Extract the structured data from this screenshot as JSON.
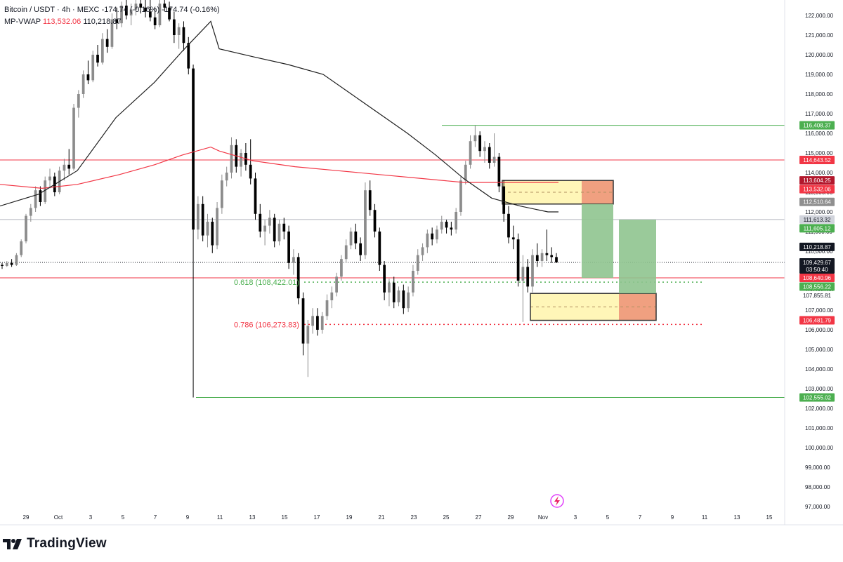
{
  "legend": {
    "symbol": "Bitcoin / USDT · 4h · MEXC",
    "change": "-174.74 (-0.16%)",
    "change2": "-174.74 (-0.16%)",
    "vwap_name": "MP-VWAP",
    "vwap_value1": "113,532.06",
    "vwap_value2": "110,218.87"
  },
  "brand": {
    "name": "TradingView"
  },
  "colors": {
    "up": "#8c8c8c",
    "down": "#000000",
    "green_line": "#4caf50",
    "red_line": "#f23645",
    "vwap_black": "#1f1f1f",
    "vwap_red": "#f23645",
    "zone_yellow": "#fff6b8",
    "zone_red": "#f0a080",
    "zone_green": "#8fc48f"
  },
  "chart_data": {
    "type": "candlestick",
    "symbol": "Bitcoin / USDT",
    "timeframe": "4h",
    "exchange": "MEXC",
    "y_range": [
      96500,
      122600
    ],
    "y_ticks": [
      "122,000.00",
      "121,000.00",
      "120,000.00",
      "119,000.00",
      "118,000.00",
      "117,000.00",
      "116,000.00",
      "115,000.00",
      "114,000.00",
      "113,000.00",
      "112,000.00",
      "111,000.00",
      "110,000.00",
      "109,000.00",
      "108,000.00",
      "107,000.00",
      "106,000.00",
      "105,000.00",
      "104,000.00",
      "103,000.00",
      "102,000.00",
      "101,000.00",
      "100,000.00",
      "99,000.00",
      "98,000.00",
      "97,000.00"
    ],
    "x_ticks": [
      "29",
      "Oct",
      "3",
      "5",
      "7",
      "9",
      "11",
      "13",
      "15",
      "17",
      "19",
      "21",
      "23",
      "25",
      "27",
      "29",
      "Nov",
      "3",
      "5",
      "7",
      "9",
      "11",
      "13",
      "15"
    ],
    "price_labels": [
      {
        "text": "116,408.37",
        "value": 116408.37,
        "style": "green"
      },
      {
        "text": "114,643.52",
        "value": 114643.52,
        "style": "red"
      },
      {
        "text": "113,604.25",
        "value": 113604.25,
        "style": "darkred"
      },
      {
        "text": "113,532.06",
        "value": 113532.06,
        "style": "red"
      },
      {
        "text": "112,510.64",
        "value": 112510.64,
        "style": "gray"
      },
      {
        "text": "111,613.32",
        "value": 111613.32,
        "style": "lightgray"
      },
      {
        "text": "111,605.12",
        "value": 111605.12,
        "style": "green"
      },
      {
        "text": "110,218.87",
        "value": 110218.87,
        "style": "black"
      },
      {
        "text": "109,429.67",
        "value": 109429.67,
        "style": "current",
        "sub": "03:50:40"
      },
      {
        "text": "108,640.96",
        "value": 108640.96,
        "style": "red"
      },
      {
        "text": "108,556.22",
        "value": 108556.22,
        "style": "green"
      },
      {
        "text": "107,855.81",
        "value": 107855.81,
        "style": "plain"
      },
      {
        "text": "106,481.79",
        "value": 106481.79,
        "style": "red"
      },
      {
        "text": "102,555.02",
        "value": 102555.02,
        "style": "green"
      }
    ],
    "fib_levels": [
      {
        "label": "0.618 (108,422.01)",
        "value": 108422.01,
        "color": "#4caf50"
      },
      {
        "label": "0.786 (106,273.83)",
        "value": 106273.83,
        "color": "#f23645"
      }
    ],
    "horizontal_lines": [
      {
        "value": 116408.37,
        "color": "#4caf50"
      },
      {
        "value": 114643.52,
        "color": "#f23645"
      },
      {
        "value": 111613.32,
        "color": "#b2b5be"
      },
      {
        "value": 109429.67,
        "color": "#131722",
        "dotted": true
      },
      {
        "value": 108640.96,
        "color": "#f23645"
      },
      {
        "value": 102555.02,
        "color": "#4caf50"
      }
    ],
    "candles": [
      [
        109300,
        109400,
        109100,
        109250
      ],
      [
        109250,
        109500,
        109200,
        109400
      ],
      [
        109400,
        109600,
        109200,
        109300
      ],
      [
        109300,
        109900,
        109250,
        109800
      ],
      [
        109800,
        110600,
        109700,
        110500
      ],
      [
        110500,
        111900,
        110400,
        111800
      ],
      [
        111800,
        112400,
        111500,
        112200
      ],
      [
        112200,
        113300,
        112000,
        113100
      ],
      [
        113100,
        113300,
        112300,
        112500
      ],
      [
        112500,
        113800,
        112400,
        113600
      ],
      [
        113600,
        114200,
        113200,
        113800
      ],
      [
        113800,
        114000,
        112800,
        113000
      ],
      [
        113000,
        114300,
        112900,
        114100
      ],
      [
        114100,
        114700,
        113600,
        114400
      ],
      [
        114400,
        115200,
        113900,
        114200
      ],
      [
        114200,
        117500,
        114100,
        117300
      ],
      [
        117300,
        118200,
        116800,
        118000
      ],
      [
        118000,
        119200,
        117800,
        119000
      ],
      [
        119000,
        119700,
        118500,
        118700
      ],
      [
        118700,
        120200,
        118600,
        120000
      ],
      [
        120000,
        120500,
        119400,
        119600
      ],
      [
        119600,
        121100,
        119500,
        120800
      ],
      [
        120800,
        121300,
        120100,
        120400
      ],
      [
        120400,
        122100,
        120300,
        121800
      ],
      [
        121800,
        122400,
        121300,
        121600
      ],
      [
        121600,
        122700,
        121400,
        122500
      ],
      [
        122500,
        122800,
        121800,
        122000
      ],
      [
        122000,
        122600,
        121500,
        122300
      ],
      [
        122300,
        122800,
        122000,
        122600
      ],
      [
        122600,
        123000,
        122100,
        122400
      ],
      [
        122400,
        122900,
        121900,
        122200
      ],
      [
        122200,
        122800,
        121700,
        121900
      ],
      [
        121900,
        122400,
        121300,
        121500
      ],
      [
        121500,
        122800,
        121400,
        122600
      ],
      [
        122600,
        123100,
        122200,
        122400
      ],
      [
        122400,
        122700,
        121700,
        121800
      ],
      [
        121800,
        122200,
        120600,
        121000
      ],
      [
        121000,
        121600,
        120300,
        121400
      ],
      [
        121400,
        121700,
        120200,
        120600
      ],
      [
        120600,
        120900,
        119000,
        119300
      ],
      [
        119300,
        119500,
        102555,
        111100
      ],
      [
        111100,
        112800,
        110600,
        112400
      ],
      [
        112400,
        112800,
        110500,
        110800
      ],
      [
        110800,
        111900,
        110200,
        111500
      ],
      [
        111500,
        111700,
        109900,
        110300
      ],
      [
        110300,
        112500,
        110100,
        112200
      ],
      [
        112200,
        113900,
        111900,
        113600
      ],
      [
        113600,
        114300,
        113300,
        114000
      ],
      [
        114000,
        115800,
        113700,
        115400
      ],
      [
        115400,
        115700,
        114000,
        114300
      ],
      [
        114300,
        115200,
        113800,
        115000
      ],
      [
        115000,
        115500,
        114100,
        114400
      ],
      [
        114400,
        115700,
        113400,
        113700
      ],
      [
        113700,
        114000,
        111600,
        111900
      ],
      [
        111900,
        112400,
        110700,
        111000
      ],
      [
        111000,
        111600,
        110300,
        111300
      ],
      [
        111300,
        112100,
        110900,
        111700
      ],
      [
        111700,
        111900,
        110200,
        110500
      ],
      [
        110500,
        111600,
        110300,
        111400
      ],
      [
        111400,
        111700,
        110600,
        111000
      ],
      [
        111000,
        111300,
        109100,
        109400
      ],
      [
        109400,
        110100,
        108800,
        109700
      ],
      [
        109700,
        109900,
        107300,
        107600
      ],
      [
        107600,
        107900,
        104700,
        105300
      ],
      [
        105300,
        106500,
        103600,
        106200
      ],
      [
        106200,
        107100,
        105800,
        106700
      ],
      [
        106700,
        107100,
        105700,
        106000
      ],
      [
        106000,
        106900,
        105800,
        106700
      ],
      [
        106700,
        107800,
        106500,
        107500
      ],
      [
        107500,
        108200,
        107100,
        107900
      ],
      [
        107900,
        108900,
        107700,
        108700
      ],
      [
        108700,
        109800,
        108500,
        109600
      ],
      [
        109600,
        110600,
        109400,
        110300
      ],
      [
        110300,
        111200,
        110100,
        111000
      ],
      [
        111000,
        111400,
        110100,
        110400
      ],
      [
        110400,
        110700,
        109500,
        109800
      ],
      [
        109800,
        113500,
        109600,
        113100
      ],
      [
        113100,
        113600,
        111800,
        112100
      ],
      [
        112100,
        112400,
        110700,
        111000
      ],
      [
        111000,
        111200,
        109000,
        109300
      ],
      [
        109300,
        109500,
        107500,
        107900
      ],
      [
        107900,
        108600,
        107200,
        108400
      ],
      [
        108400,
        108700,
        107100,
        107400
      ],
      [
        107400,
        108200,
        107200,
        108000
      ],
      [
        108000,
        108300,
        106800,
        107100
      ],
      [
        107100,
        108200,
        106900,
        107900
      ],
      [
        107900,
        109300,
        107700,
        109000
      ],
      [
        109000,
        110100,
        108800,
        109800
      ],
      [
        109800,
        110400,
        109500,
        110200
      ],
      [
        110200,
        111100,
        109900,
        110900
      ],
      [
        110900,
        111200,
        110300,
        110600
      ],
      [
        110600,
        111300,
        110400,
        111100
      ],
      [
        111100,
        111800,
        110900,
        111500
      ],
      [
        111500,
        111600,
        110900,
        111200
      ],
      [
        111200,
        111500,
        110800,
        111100
      ],
      [
        111100,
        112200,
        110900,
        112000
      ],
      [
        112000,
        113800,
        111800,
        113600
      ],
      [
        113600,
        114600,
        113400,
        114400
      ],
      [
        114400,
        115900,
        114200,
        115600
      ],
      [
        115600,
        116400,
        115300,
        115900
      ],
      [
        115900,
        116100,
        114800,
        115100
      ],
      [
        115100,
        115600,
        114500,
        115300
      ],
      [
        115300,
        115500,
        114200,
        114500
      ],
      [
        114500,
        116000,
        114300,
        114800
      ],
      [
        114800,
        115000,
        113000,
        113300
      ],
      [
        113300,
        113600,
        111500,
        111900
      ],
      [
        111900,
        112300,
        110400,
        110700
      ],
      [
        110700,
        111300,
        110100,
        110600
      ],
      [
        110600,
        110900,
        108200,
        108500
      ],
      [
        108500,
        109800,
        106400,
        109200
      ],
      [
        109200,
        109600,
        107900,
        108200
      ],
      [
        108200,
        110100,
        107900,
        109800
      ],
      [
        109800,
        110400,
        109200,
        109500
      ],
      [
        109500,
        110100,
        109200,
        109900
      ],
      [
        109900,
        111100,
        109500,
        109800
      ],
      [
        109800,
        110200,
        109400,
        109700
      ],
      [
        109700,
        109900,
        109400,
        109430
      ]
    ],
    "vwap_black": [
      [
        0,
        112300
      ],
      [
        55,
        112900
      ],
      [
        110,
        114100
      ],
      [
        165,
        116800
      ],
      [
        220,
        118600
      ],
      [
        260,
        120200
      ],
      [
        300,
        121700
      ],
      [
        312,
        120300
      ],
      [
        360,
        119900
      ],
      [
        410,
        119500
      ],
      [
        460,
        119000
      ],
      [
        500,
        118000
      ],
      [
        540,
        117000
      ],
      [
        580,
        116000
      ],
      [
        620,
        114900
      ],
      [
        660,
        113700
      ],
      [
        700,
        112700
      ],
      [
        740,
        112300
      ],
      [
        780,
        112000
      ],
      [
        795,
        112000
      ]
    ],
    "vwap_red": [
      [
        0,
        113400
      ],
      [
        60,
        113200
      ],
      [
        110,
        113400
      ],
      [
        170,
        113900
      ],
      [
        220,
        114400
      ],
      [
        260,
        114900
      ],
      [
        300,
        115300
      ],
      [
        312,
        115100
      ],
      [
        360,
        114600
      ],
      [
        420,
        114300
      ],
      [
        480,
        114100
      ],
      [
        540,
        113900
      ],
      [
        600,
        113700
      ],
      [
        660,
        113500
      ],
      [
        740,
        113500
      ],
      [
        795,
        113500
      ]
    ],
    "zones": [
      {
        "x0": 715,
        "x1": 873,
        "top": 113600,
        "bot": 112400,
        "split": 828,
        "kind": "yellow-red"
      },
      {
        "x0": 755,
        "x1": 934,
        "top": 107850,
        "bot": 106480,
        "split": 881,
        "kind": "yellow-red"
      },
      {
        "x0": 828,
        "x1": 873,
        "top": 112400,
        "bot": 108640,
        "kind": "green"
      },
      {
        "x0": 881,
        "x1": 934,
        "top": 111605,
        "bot": 107850,
        "kind": "green"
      }
    ]
  }
}
